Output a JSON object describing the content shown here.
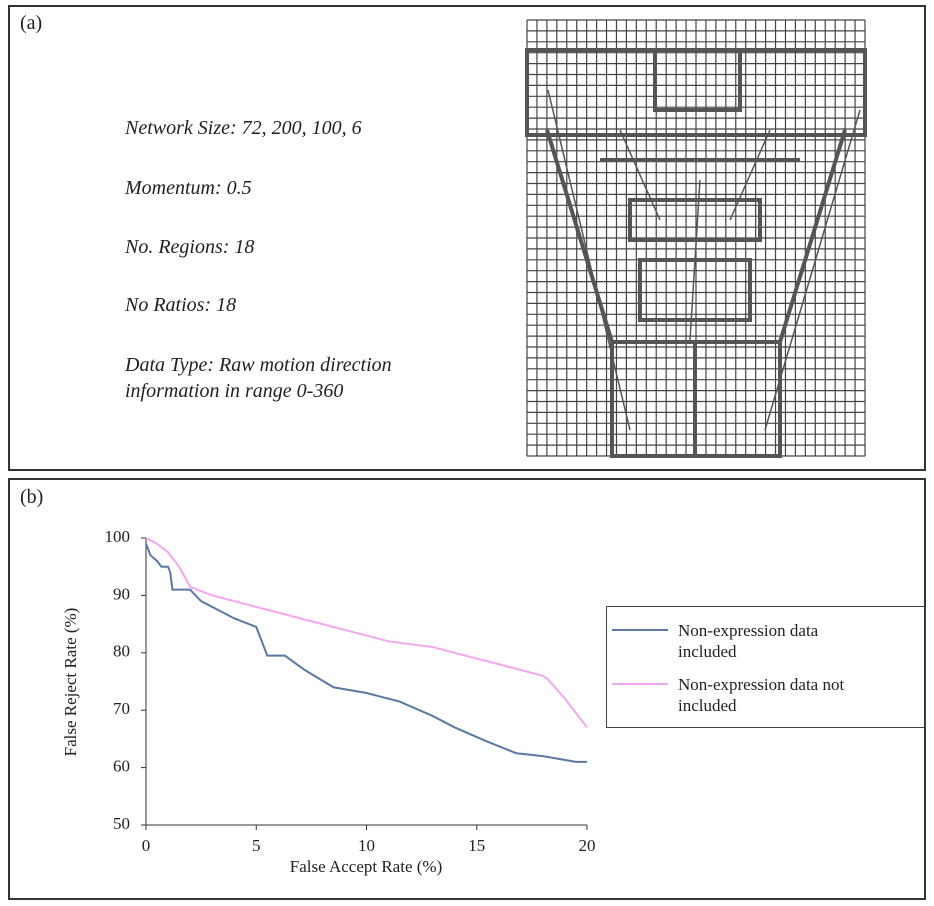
{
  "panel_a": {
    "label": "(a)",
    "lines": [
      "Network Size: 72, 200, 100, 6",
      "Momentum: 0.5",
      "No. Regions: 18",
      "No Ratios: 18",
      "Data Type: Raw motion direction information in range 0-360"
    ]
  },
  "chart_data": {
    "type": "line",
    "label": "(b)",
    "x_label": "False Accept Rate (%)",
    "y_label": "False Reject Rate (%)",
    "xlim": [
      0,
      20
    ],
    "xticks": [
      0,
      5,
      10,
      15,
      20
    ],
    "ylim": [
      50,
      100
    ],
    "yticks": [
      50,
      60,
      70,
      80,
      90,
      100
    ],
    "series": [
      {
        "name": "Non-expression data included",
        "color": "#5b78a6",
        "x": [
          0,
          0.2,
          0.5,
          0.7,
          1,
          1.1,
          1.2,
          2,
          2.5,
          3,
          4,
          5,
          5.5,
          6.3,
          7.2,
          8.5,
          10,
          11.5,
          13,
          14,
          15.5,
          16.8,
          18,
          19.5,
          20
        ],
        "values": [
          99,
          97,
          96,
          95,
          95,
          94,
          91,
          91,
          89,
          88,
          86,
          84.5,
          79.5,
          79.5,
          77,
          74,
          73,
          71.5,
          69,
          67,
          64.5,
          62.5,
          62,
          61,
          61
        ]
      },
      {
        "name": "Non-expression data not included",
        "color": "#f4a6f0",
        "x": [
          0,
          0.5,
          1,
          1.5,
          2,
          3,
          4,
          5,
          6,
          7,
          8,
          9,
          10,
          11,
          12,
          13,
          14,
          15,
          16,
          17,
          18,
          18.2,
          19,
          20
        ],
        "values": [
          100,
          99,
          97.5,
          95,
          91.5,
          90,
          89,
          88,
          87,
          86,
          85,
          84,
          83,
          82,
          81.5,
          81,
          80,
          79,
          78,
          77,
          76,
          75.5,
          72,
          67
        ]
      }
    ]
  }
}
